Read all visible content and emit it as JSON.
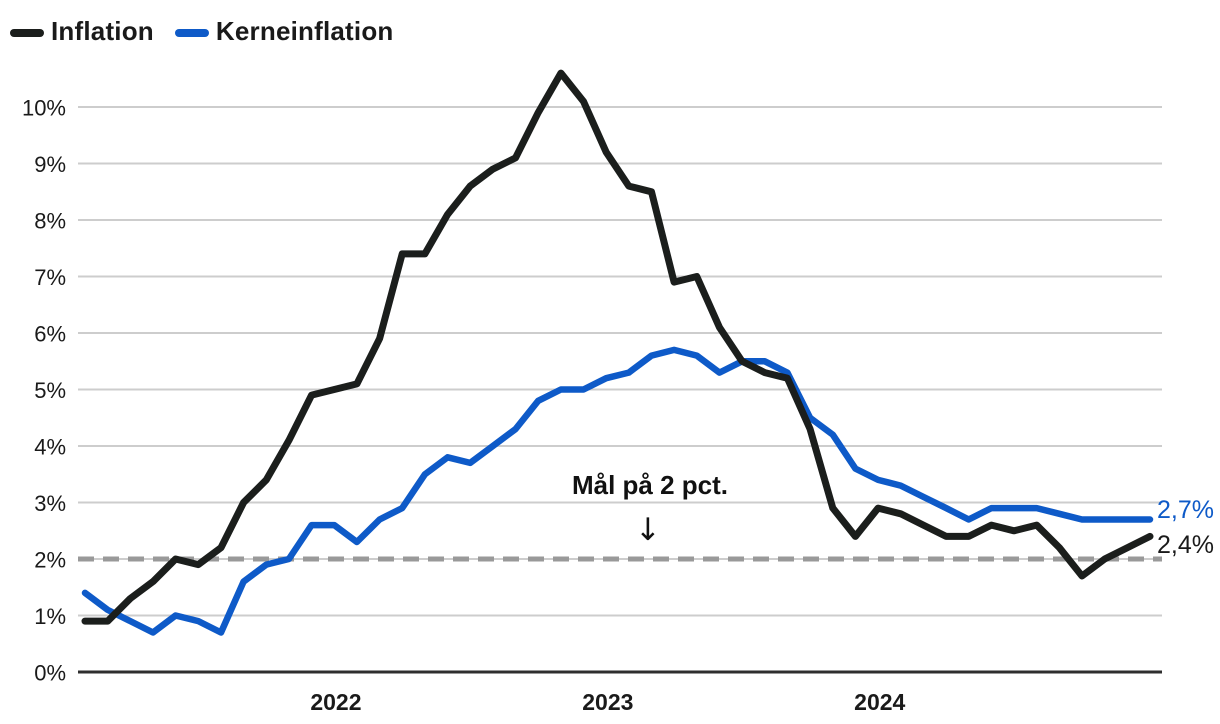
{
  "legend": {
    "items": [
      {
        "label": "Inflation",
        "color": "#1b1e1c"
      },
      {
        "label": "Kerneinflation",
        "color": "#0e5ac8"
      }
    ]
  },
  "annotation": {
    "text": "Mål på 2 pct.",
    "arrow_icon": "↓"
  },
  "end_labels": {
    "kerneinflation": "2,7%",
    "inflation": "2,4%"
  },
  "chart_data": {
    "type": "line",
    "frequency": "monthly",
    "x_range": [
      "2021-01",
      "2024-12"
    ],
    "grid": "horizontal",
    "y_axis": {
      "unit": "%",
      "min": 0,
      "max": 10,
      "tick_labels": [
        "0%",
        "1%",
        "2%",
        "3%",
        "4%",
        "5%",
        "6%",
        "7%",
        "8%",
        "9%",
        "10%"
      ]
    },
    "x_axis": {
      "ticks": [
        {
          "label": "2022",
          "month_index": 12
        },
        {
          "label": "2023",
          "month_index": 24
        },
        {
          "label": "2024",
          "month_index": 36
        }
      ]
    },
    "target_line": {
      "value": 2,
      "label": "Mål på 2 pct.",
      "style": "dashed",
      "color": "#999999"
    },
    "series": [
      {
        "name": "Inflation",
        "color": "#1b1e1c",
        "last_value_label": "2,4%",
        "values": [
          0.9,
          0.9,
          1.3,
          1.6,
          2.0,
          1.9,
          2.2,
          3.0,
          3.4,
          4.1,
          4.9,
          5.0,
          5.1,
          5.9,
          7.4,
          7.4,
          8.1,
          8.6,
          8.9,
          9.1,
          9.9,
          10.6,
          10.1,
          9.2,
          8.6,
          8.5,
          6.9,
          7.0,
          6.1,
          5.5,
          5.3,
          5.2,
          4.3,
          2.9,
          2.4,
          2.9,
          2.8,
          2.6,
          2.4,
          2.4,
          2.6,
          2.5,
          2.6,
          2.2,
          1.7,
          2.0,
          2.2,
          2.4
        ]
      },
      {
        "name": "Kerneinflation",
        "color": "#0e5ac8",
        "last_value_label": "2,7%",
        "values": [
          1.4,
          1.1,
          0.9,
          0.7,
          1.0,
          0.9,
          0.7,
          1.6,
          1.9,
          2.0,
          2.6,
          2.6,
          2.3,
          2.7,
          2.9,
          3.5,
          3.8,
          3.7,
          4.0,
          4.3,
          4.8,
          5.0,
          5.0,
          5.2,
          5.3,
          5.6,
          5.7,
          5.6,
          5.3,
          5.5,
          5.5,
          5.3,
          4.5,
          4.2,
          3.6,
          3.4,
          3.3,
          3.1,
          2.9,
          2.7,
          2.9,
          2.9,
          2.9,
          2.8,
          2.7,
          2.7,
          2.7,
          2.7
        ]
      }
    ]
  },
  "colors": {
    "background": "#ffffff",
    "grid": "#cdcdcd",
    "axis": "#2e2e2e",
    "target": "#999999",
    "text": "#1a1a1a"
  }
}
